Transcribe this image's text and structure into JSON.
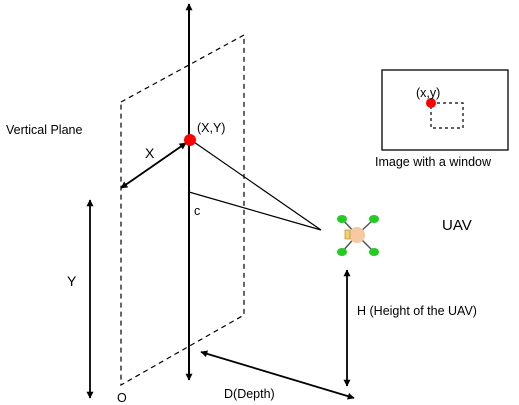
{
  "labels": {
    "vertical_plane": "Vertical Plane",
    "point_XY": "(X,Y)",
    "x_axis": "X",
    "y_axis": "Y",
    "angle_c": "c",
    "origin": "O",
    "depth": "D(Depth)",
    "height": "H (Height of the UAV)",
    "uav": "UAV",
    "image_point": "(x,y)",
    "image_caption": "Image with a window"
  },
  "colors": {
    "line": "#000000",
    "target_point": "#ff0000",
    "uav_body": "#f6c9a2",
    "uav_rotor": "#22cc22",
    "uav_camera": "#f0d070",
    "background": "#ffffff"
  },
  "icons": {
    "uav": "drone-icon",
    "target": "red-dot-marker"
  }
}
